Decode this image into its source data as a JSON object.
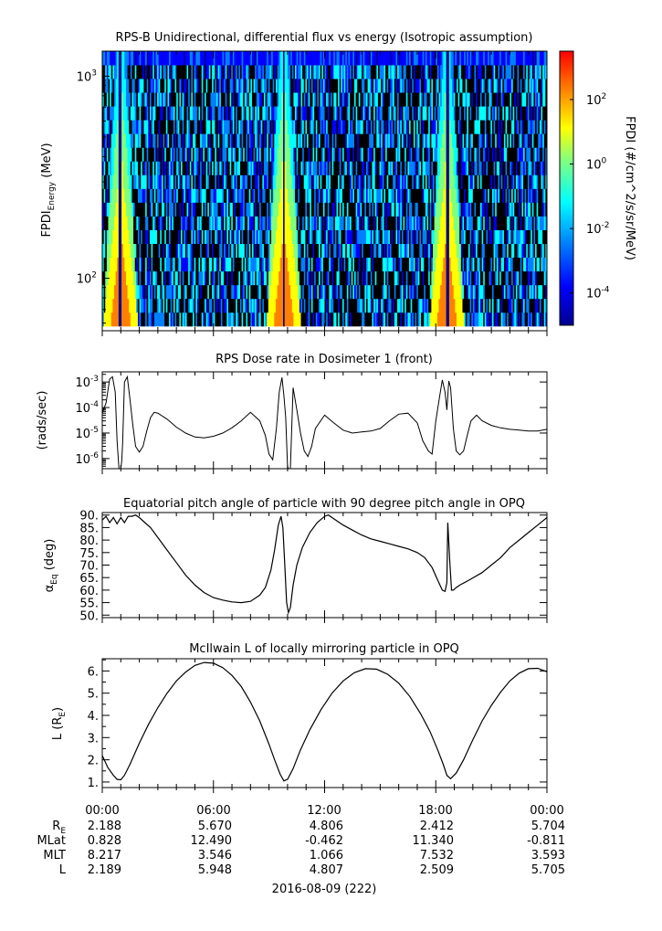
{
  "chart_data": [
    {
      "type": "heatmap",
      "title": "RPS-B  Unidirectional, differential flux vs energy (Isotropic assumption)",
      "ylabel_main": "FPDI",
      "ylabel_sub": "Energy",
      "ylabel_unit": "(MeV)",
      "yscale": "log",
      "ylim": [
        55,
        1330
      ],
      "y_ticks": [
        {
          "value": 100,
          "base": "10",
          "exp": "2"
        },
        {
          "value": 1000,
          "base": "10",
          "exp": "3"
        }
      ],
      "x_hours_range": [
        0,
        24
      ],
      "energy_channel_count": 20,
      "time_bin_count": 300,
      "colorbar": {
        "label": "FPDI (#/cm^2/s/sr/MeV)",
        "log_range": [
          -5,
          3.5
        ],
        "ticks": [
          {
            "base": "10",
            "exp": "-4",
            "value": -4
          },
          {
            "base": "10",
            "exp": "-2",
            "value": -2
          },
          {
            "base": "10",
            "exp": "0",
            "value": 0
          },
          {
            "base": "10",
            "exp": "2",
            "value": 2
          }
        ],
        "colors": [
          "#00008f",
          "#0000ff",
          "#0080ff",
          "#00ffff",
          "#80ff80",
          "#ffff00",
          "#ff8000",
          "#ff0000"
        ]
      },
      "perigee_hours": [
        1.0,
        9.8,
        18.6
      ]
    },
    {
      "type": "line",
      "title": "RPS  Dose rate in Dosimeter 1 (front)",
      "ylabel": "(rads/sec)",
      "yscale": "log",
      "ylim": [
        4e-07,
        0.0025
      ],
      "y_ticks": [
        {
          "value": 1e-06,
          "base": "10",
          "exp": "-6"
        },
        {
          "value": 1e-05,
          "base": "10",
          "exp": "-5"
        },
        {
          "value": 0.0001,
          "base": "10",
          "exp": "-4"
        },
        {
          "value": 0.001,
          "base": "10",
          "exp": "-3"
        }
      ],
      "x": [
        0,
        0.2,
        0.4,
        0.55,
        0.7,
        0.8,
        0.9,
        1.0,
        1.05,
        1.1,
        1.2,
        1.35,
        1.5,
        1.65,
        1.8,
        2.0,
        2.2,
        2.4,
        2.6,
        2.8,
        3.0,
        3.5,
        4.0,
        4.5,
        5.0,
        5.5,
        6.0,
        6.5,
        7.0,
        7.5,
        8.0,
        8.5,
        8.8,
        9.0,
        9.2,
        9.4,
        9.55,
        9.7,
        9.8,
        9.9,
        10.0,
        10.05,
        10.15,
        10.3,
        10.5,
        10.7,
        10.9,
        11.1,
        11.3,
        11.5,
        12.0,
        12.5,
        13.0,
        13.5,
        14.0,
        14.5,
        15.0,
        15.5,
        16.0,
        16.5,
        17.0,
        17.3,
        17.6,
        17.8,
        18.0,
        18.2,
        18.35,
        18.5,
        18.6,
        18.7,
        18.8,
        18.95,
        19.1,
        19.3,
        19.5,
        19.7,
        19.9,
        20.2,
        20.5,
        21.0,
        21.5,
        22.0,
        22.5,
        23.0,
        23.5,
        24.0
      ],
      "y": [
        6e-05,
        0.00015,
        0.0013,
        0.0016,
        0.0004,
        5e-06,
        4e-07,
        4e-07,
        8e-07,
        4e-06,
        0.001,
        0.0016,
        0.0002,
        2e-05,
        3e-06,
        1.8e-06,
        3e-06,
        1.2e-05,
        4e-05,
        6.5e-05,
        6e-05,
        3.5e-05,
        1.7e-05,
        1e-05,
        7e-06,
        6.5e-06,
        7.5e-06,
        1e-05,
        1.6e-05,
        3e-05,
        6.5e-05,
        3e-05,
        8e-06,
        1.5e-06,
        9e-07,
        1.5e-05,
        0.0004,
        0.0015,
        0.0003,
        4e-05,
        5e-07,
        4e-07,
        4e-07,
        0.0006,
        8e-05,
        1e-05,
        2e-06,
        1.2e-06,
        3e-06,
        1.5e-05,
        5e-05,
        2.5e-05,
        1.3e-05,
        1e-05,
        1.1e-05,
        1.2e-05,
        1.5e-05,
        3e-05,
        5.5e-05,
        6e-05,
        2.5e-05,
        5e-06,
        2e-06,
        1.5e-06,
        3e-05,
        0.00025,
        0.0012,
        0.0004,
        8e-05,
        0.0011,
        0.0006,
        1.5e-05,
        2e-06,
        1.4e-06,
        2e-06,
        8e-06,
        3e-05,
        5e-05,
        3e-05,
        2e-05,
        1.6e-05,
        1.4e-05,
        1.3e-05,
        1.2e-05,
        1.2e-05,
        1.4e-05
      ]
    },
    {
      "type": "line",
      "title": "Equatorial pitch angle of particle with 90 degree pitch angle in OPQ",
      "ylabel_main": "α",
      "ylabel_sub": "Eq",
      "ylabel_unit": "(deg)",
      "ylim": [
        49,
        91
      ],
      "y_ticks": [
        "50.",
        "55.",
        "60.",
        "65.",
        "70.",
        "75.",
        "80.",
        "85.",
        "90."
      ],
      "x": [
        0,
        0.2,
        0.4,
        0.6,
        0.8,
        1.0,
        1.2,
        1.4,
        1.6,
        1.8,
        2.0,
        2.3,
        2.6,
        3.0,
        3.5,
        4.0,
        4.5,
        5.0,
        5.5,
        6.0,
        6.5,
        7.0,
        7.5,
        8.0,
        8.5,
        8.8,
        9.1,
        9.3,
        9.5,
        9.65,
        9.75,
        9.85,
        9.95,
        10.05,
        10.15,
        10.3,
        10.5,
        10.8,
        11.2,
        11.6,
        12.0,
        12.2,
        12.6,
        13.0,
        13.5,
        14.0,
        14.5,
        15.0,
        15.5,
        16.0,
        16.5,
        17.0,
        17.4,
        17.8,
        18.1,
        18.35,
        18.5,
        18.6,
        18.65,
        18.75,
        18.85,
        18.95,
        19.1,
        19.3,
        19.8,
        20.5,
        21.0,
        21.5,
        22.0,
        22.5,
        23.0,
        23.5,
        24.0
      ],
      "y": [
        88,
        89.5,
        87,
        89,
        86.5,
        89,
        87,
        89.5,
        89.5,
        90,
        89,
        87,
        85,
        81,
        76,
        71,
        66,
        62,
        59,
        57,
        56,
        55.3,
        55,
        55.5,
        58,
        61,
        68,
        76,
        86,
        89.5,
        85,
        70,
        55,
        51,
        53,
        62,
        70,
        77,
        83,
        87,
        89.5,
        90,
        88,
        86,
        84,
        82,
        80.5,
        79.5,
        78.5,
        77.5,
        76.5,
        75,
        73,
        69,
        64,
        60,
        59.5,
        63,
        87,
        72,
        60,
        60,
        61,
        62,
        64,
        67,
        70,
        73,
        77,
        80,
        83,
        86,
        89
      ]
    },
    {
      "type": "line",
      "title": "McIlwain L of locally mirroring particle in OPQ",
      "ylabel_main": "L (R",
      "ylabel_sub": "E",
      "ylabel_unit": ")",
      "ylim": [
        0.75,
        6.55
      ],
      "y_ticks": [
        "1.",
        "2.",
        "3.",
        "4.",
        "5.",
        "6."
      ],
      "x": [
        0,
        0.3,
        0.6,
        0.8,
        1.0,
        1.2,
        1.5,
        2.0,
        2.5,
        3.0,
        3.5,
        4.0,
        4.5,
        5.0,
        5.5,
        6.0,
        6.5,
        7.0,
        7.5,
        8.0,
        8.5,
        9.0,
        9.3,
        9.6,
        9.8,
        10.0,
        10.3,
        10.7,
        11.2,
        11.8,
        12.4,
        13.0,
        13.6,
        14.2,
        14.8,
        15.4,
        16.0,
        16.6,
        17.2,
        17.7,
        18.1,
        18.4,
        18.6,
        18.8,
        19.1,
        19.5,
        20.0,
        20.5,
        21.0,
        21.5,
        22.0,
        22.5,
        23.0,
        23.5,
        24.0
      ],
      "y": [
        2.19,
        1.65,
        1.3,
        1.12,
        1.1,
        1.3,
        1.8,
        2.75,
        3.6,
        4.35,
        5.0,
        5.55,
        5.95,
        6.25,
        6.38,
        6.35,
        6.15,
        5.8,
        5.3,
        4.6,
        3.75,
        2.7,
        2.0,
        1.35,
        1.05,
        1.12,
        1.6,
        2.45,
        3.35,
        4.25,
        5.0,
        5.55,
        5.92,
        6.1,
        6.08,
        5.85,
        5.45,
        4.85,
        4.05,
        3.25,
        2.45,
        1.8,
        1.3,
        1.15,
        1.4,
        2.0,
        2.9,
        3.75,
        4.45,
        5.05,
        5.55,
        5.9,
        6.1,
        6.12,
        5.96
      ]
    }
  ],
  "x_axis": {
    "ticks": [
      "00:00",
      "06:00",
      "12:00",
      "18:00",
      "00:00"
    ],
    "date_label": "2016-08-09 (222)",
    "ephemeris": [
      {
        "label": "R",
        "sub": "E",
        "values": [
          "2.188",
          "5.670",
          "4.806",
          "2.412",
          "5.704"
        ]
      },
      {
        "label": "MLat",
        "sub": "",
        "values": [
          "0.828",
          "12.490",
          "-0.462",
          "11.340",
          "-0.811"
        ]
      },
      {
        "label": "MLT",
        "sub": "",
        "values": [
          "8.217",
          "3.546",
          "1.066",
          "7.532",
          "3.593"
        ]
      },
      {
        "label": "L",
        "sub": "",
        "values": [
          "2.189",
          "5.948",
          "4.807",
          "2.509",
          "5.705"
        ]
      }
    ]
  }
}
